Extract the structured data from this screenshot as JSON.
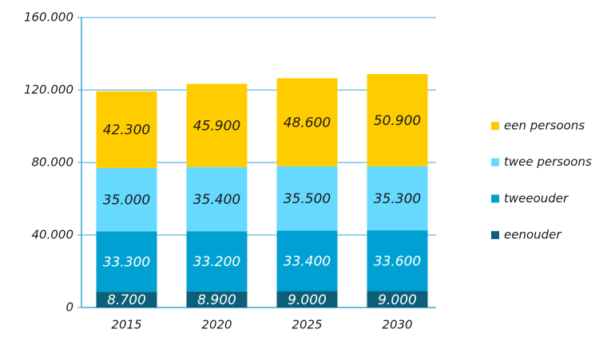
{
  "chart_data": {
    "type": "stacked_bar",
    "categories": [
      "2015",
      "2020",
      "2025",
      "2030"
    ],
    "series": [
      {
        "name": "eenouder",
        "color": "#0b5f78",
        "label_color": "#ffffff",
        "values": [
          8700,
          8900,
          9000,
          9000
        ],
        "value_labels": [
          "8.700",
          "8.900",
          "9.000",
          "9.000"
        ]
      },
      {
        "name": "tweeouder",
        "color": "#00a0d2",
        "label_color": "#ffffff",
        "values": [
          33300,
          33200,
          33400,
          33600
        ],
        "value_labels": [
          "33.300",
          "33.200",
          "33.400",
          "33.600"
        ]
      },
      {
        "name": "twee persoons",
        "color": "#66d9ff",
        "label_color": "#1a1a1a",
        "values": [
          35000,
          35400,
          35500,
          35300
        ],
        "value_labels": [
          "35.000",
          "35.400",
          "35.500",
          "35.300"
        ]
      },
      {
        "name": "een persoons",
        "color": "#ffcc00",
        "label_color": "#1a1a1a",
        "values": [
          42300,
          45900,
          48600,
          50900
        ],
        "value_labels": [
          "42.300",
          "45.900",
          "48.600",
          "50.900"
        ]
      }
    ],
    "ylim": [
      0,
      160000
    ],
    "yticks": [
      0,
      {
        "value": 40000,
        "label": "40.000"
      },
      {
        "value": 80000,
        "label": "80.000"
      },
      {
        "value": 120000,
        "label": "120.000"
      },
      {
        "value": 160000,
        "label": "160.000"
      }
    ],
    "grid": true,
    "legend": "right"
  }
}
